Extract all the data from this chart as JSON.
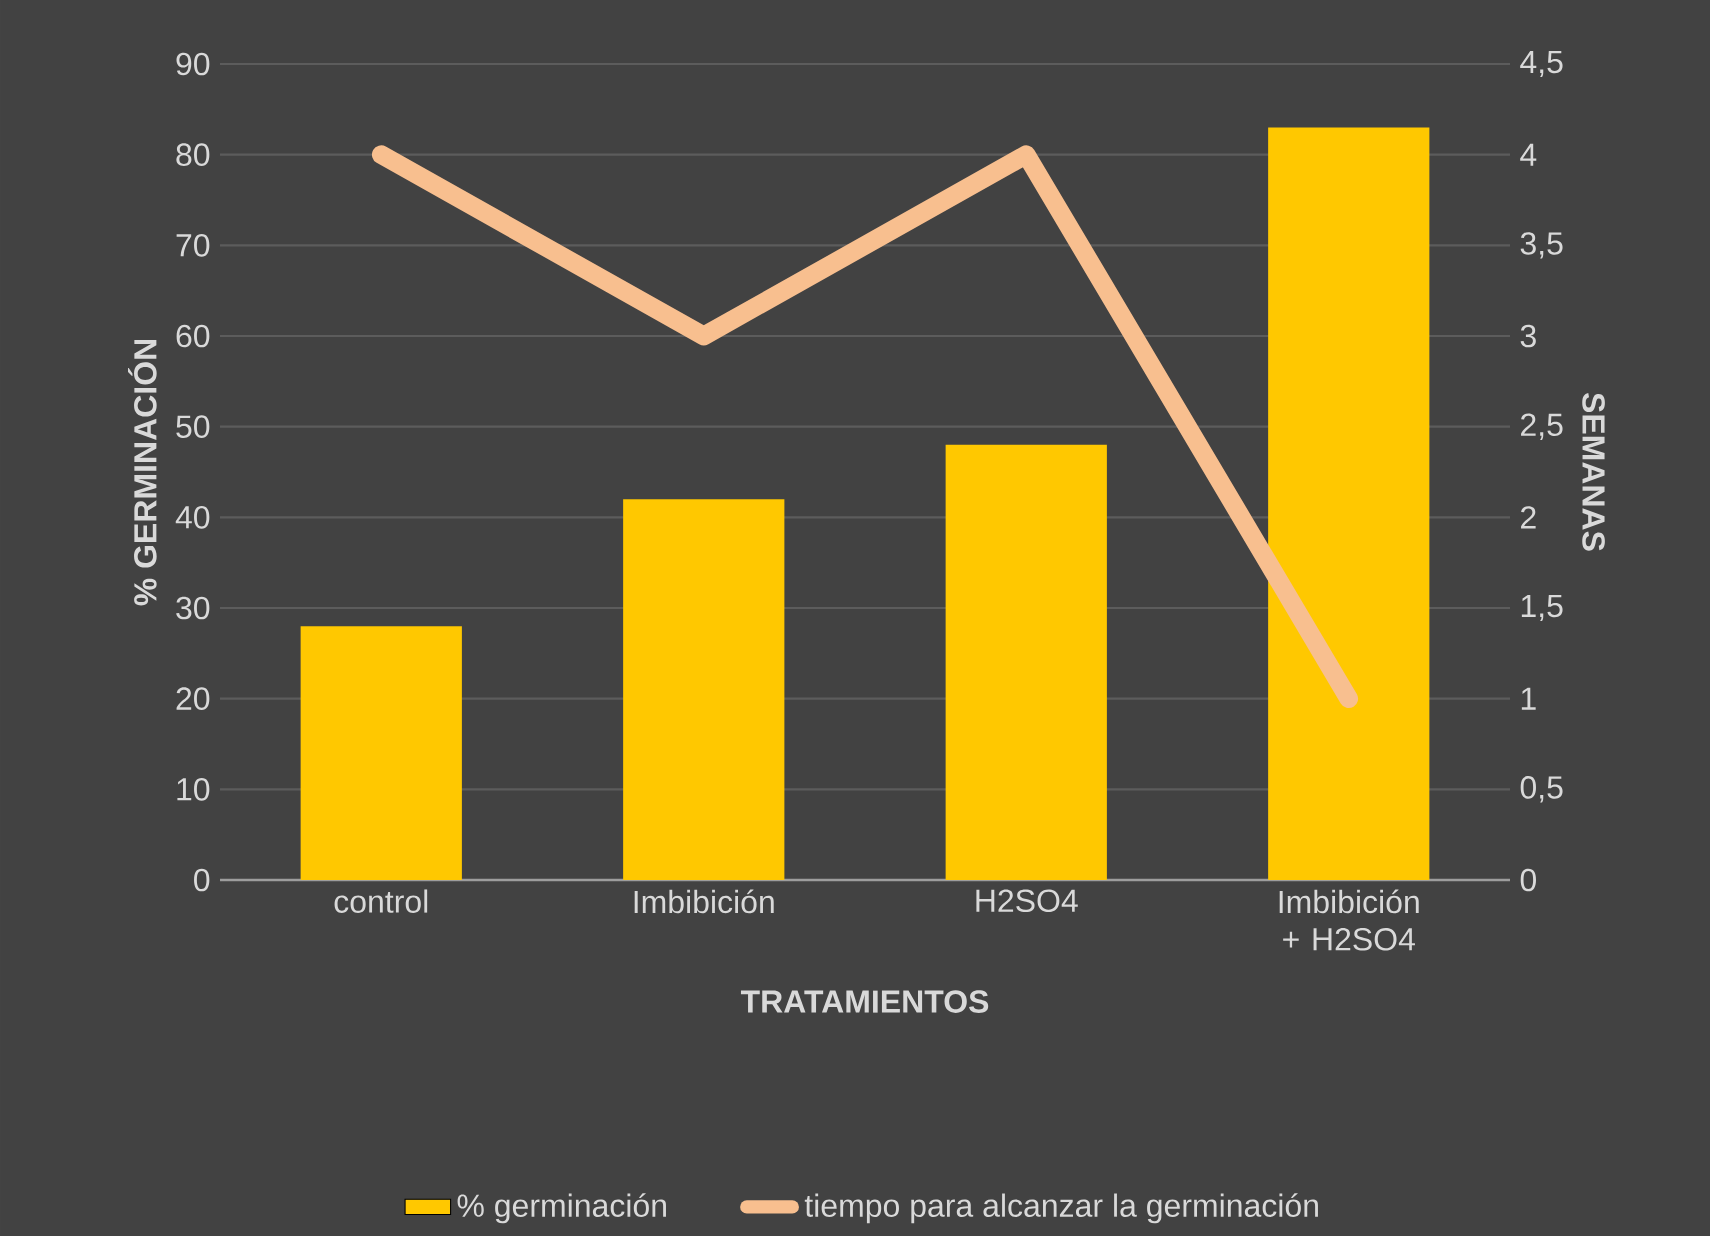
{
  "chart_data": {
    "type": "bar",
    "categories": [
      "control",
      "Imbibición",
      "H2SO4",
      "Imbibición + H2SO4"
    ],
    "series": [
      {
        "name": "% germinación",
        "color": "#ffc800",
        "values": [
          28,
          42,
          48,
          83
        ]
      },
      {
        "name": "tiempo para alcanzar la germinación",
        "type": "line",
        "axis": "y2",
        "color": "#f8bf8f",
        "values": [
          4,
          3,
          4,
          1
        ]
      }
    ],
    "xlabel": "TRATAMIENTOS",
    "ylabel": "% GERMINACIÓN",
    "y2label": "SEMANAS",
    "ylim": [
      0,
      90
    ],
    "yticks": [
      0,
      10,
      20,
      30,
      40,
      50,
      60,
      70,
      80,
      90
    ],
    "y2lim": [
      0,
      4.5
    ],
    "y2ticks": [
      0,
      {
        "value": 0.5,
        "label": "0,5"
      },
      1,
      {
        "value": 1.5,
        "label": "1,5"
      },
      2,
      {
        "value": 2.5,
        "label": "2,5"
      },
      3,
      {
        "value": 3.5,
        "label": "3,5"
      },
      4,
      {
        "value": 4.5,
        "label": "4,5"
      }
    ],
    "grid": "y",
    "legend": "bottom"
  }
}
